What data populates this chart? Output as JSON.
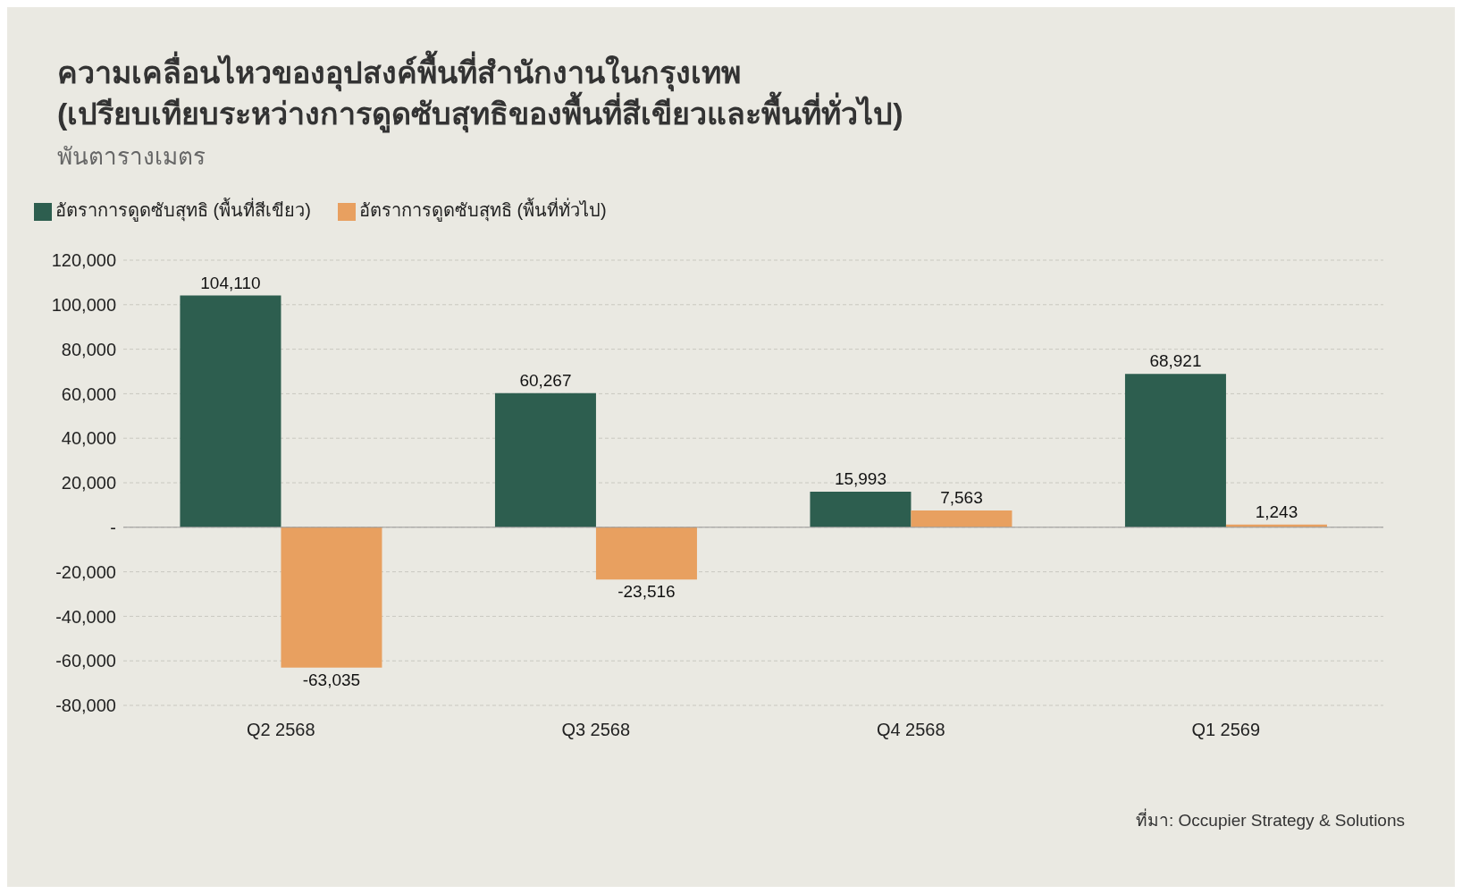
{
  "chart_data": {
    "type": "bar",
    "title": "ความเคลื่อนไหวของอุปสงค์พื้นที่สำนักงานในกรุงเทพ\n(เปรียบเทียบระหว่างการดูดซับสุทธิของพื้นที่สีเขียวและพื้นที่ทั่วไป)",
    "subtitle": "พันตารางเมตร",
    "categories": [
      "Q2 2568",
      "Q3 2568",
      "Q4 2568",
      "Q1 2569"
    ],
    "series": [
      {
        "name": "อัตราการดูดซับสุทธิ (พื้นที่สีเขียว)",
        "color": "#2d5e4f",
        "values": [
          104110,
          60267,
          15993,
          68921
        ],
        "value_labels": [
          "104,110",
          "60,267",
          "15,993",
          "68,921"
        ]
      },
      {
        "name": "อัตราการดูดซับสุทธิ (พื้นที่ทั่วไป)",
        "color": "#e8a060",
        "values": [
          -63035,
          -23516,
          7563,
          1243
        ],
        "value_labels": [
          "-63,035",
          "-23,516",
          "7,563",
          "1,243"
        ]
      }
    ],
    "ylim": [
      -80000,
      120000
    ],
    "yticks": [
      {
        "value": -80000,
        "label": "-80,000"
      },
      {
        "value": -60000,
        "label": "-60,000"
      },
      {
        "value": -40000,
        "label": "-40,000"
      },
      {
        "value": -20000,
        "label": "-20,000"
      },
      {
        "value": 0,
        "label": "-"
      },
      {
        "value": 20000,
        "label": "20,000"
      },
      {
        "value": 40000,
        "label": "40,000"
      },
      {
        "value": 60000,
        "label": "60,000"
      },
      {
        "value": 80000,
        "label": "80,000"
      },
      {
        "value": 100000,
        "label": "100,000"
      },
      {
        "value": 120000,
        "label": "120,000"
      }
    ],
    "grid": "y",
    "legend": "top left",
    "annotations": [
      "ที่มา: Occupier Strategy & Solutions"
    ]
  }
}
